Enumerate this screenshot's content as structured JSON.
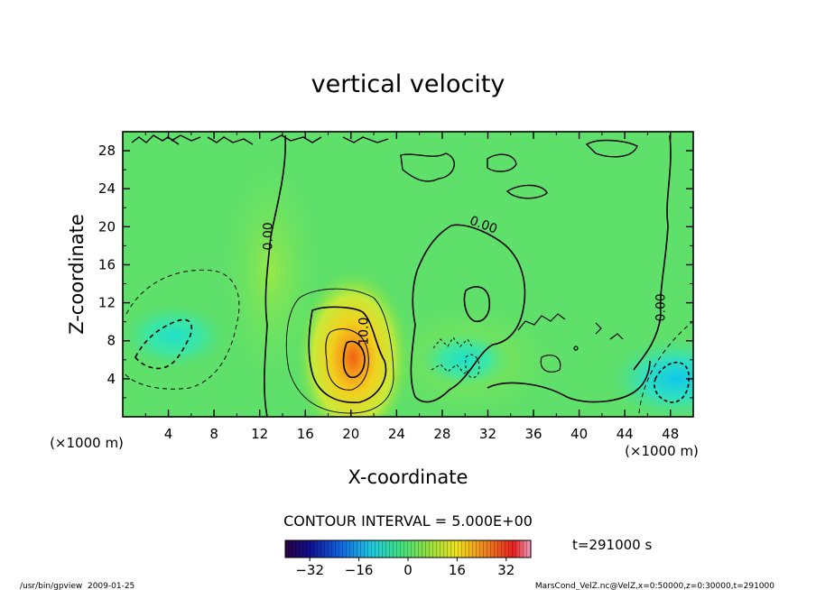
{
  "chart_data": {
    "type": "heatmap",
    "title": "vertical velocity",
    "xlabel": "X-coordinate",
    "ylabel": "Z-coordinate",
    "x_unit": "(×1000 m)",
    "y_unit": "(×1000 m)",
    "xlim": [
      0,
      50
    ],
    "ylim": [
      0,
      30
    ],
    "x_ticks": [
      4,
      8,
      12,
      16,
      20,
      24,
      28,
      32,
      36,
      40,
      44,
      48
    ],
    "y_ticks": [
      4,
      8,
      12,
      16,
      20,
      24,
      28
    ],
    "contour_interval_text": "CONTOUR INTERVAL = 5.000E+00",
    "contour_labels": [
      {
        "text": "0.00",
        "x": 13.1,
        "y": 19.0
      },
      {
        "text": "0.00",
        "x": 31.5,
        "y": 19.8
      },
      {
        "text": "0.00",
        "x": 47.5,
        "y": 11.5
      },
      {
        "text": "10.0",
        "x": 21.5,
        "y": 9.0
      }
    ],
    "features": [
      {
        "kind": "updraft",
        "x": 20.2,
        "z": 6.2,
        "peak": 28
      },
      {
        "kind": "downdraft",
        "x": 4.5,
        "z": 8.5,
        "peak": -10
      },
      {
        "kind": "downdraft",
        "x": 48.5,
        "z": 4.0,
        "peak": -14
      },
      {
        "kind": "downdraft",
        "x": 30.0,
        "z": 6.0,
        "peak": -8
      }
    ],
    "colorbar": {
      "min": -40,
      "max": 40,
      "ticks": [
        -32,
        -16,
        0,
        16,
        32
      ]
    },
    "time_label": "t=291000 s",
    "footer_left": "/usr/bin/gpview  2009-01-25",
    "footer_right": "MarsCond_VelZ.nc@VelZ,x=0:50000,z=0:30000,t=291000"
  }
}
